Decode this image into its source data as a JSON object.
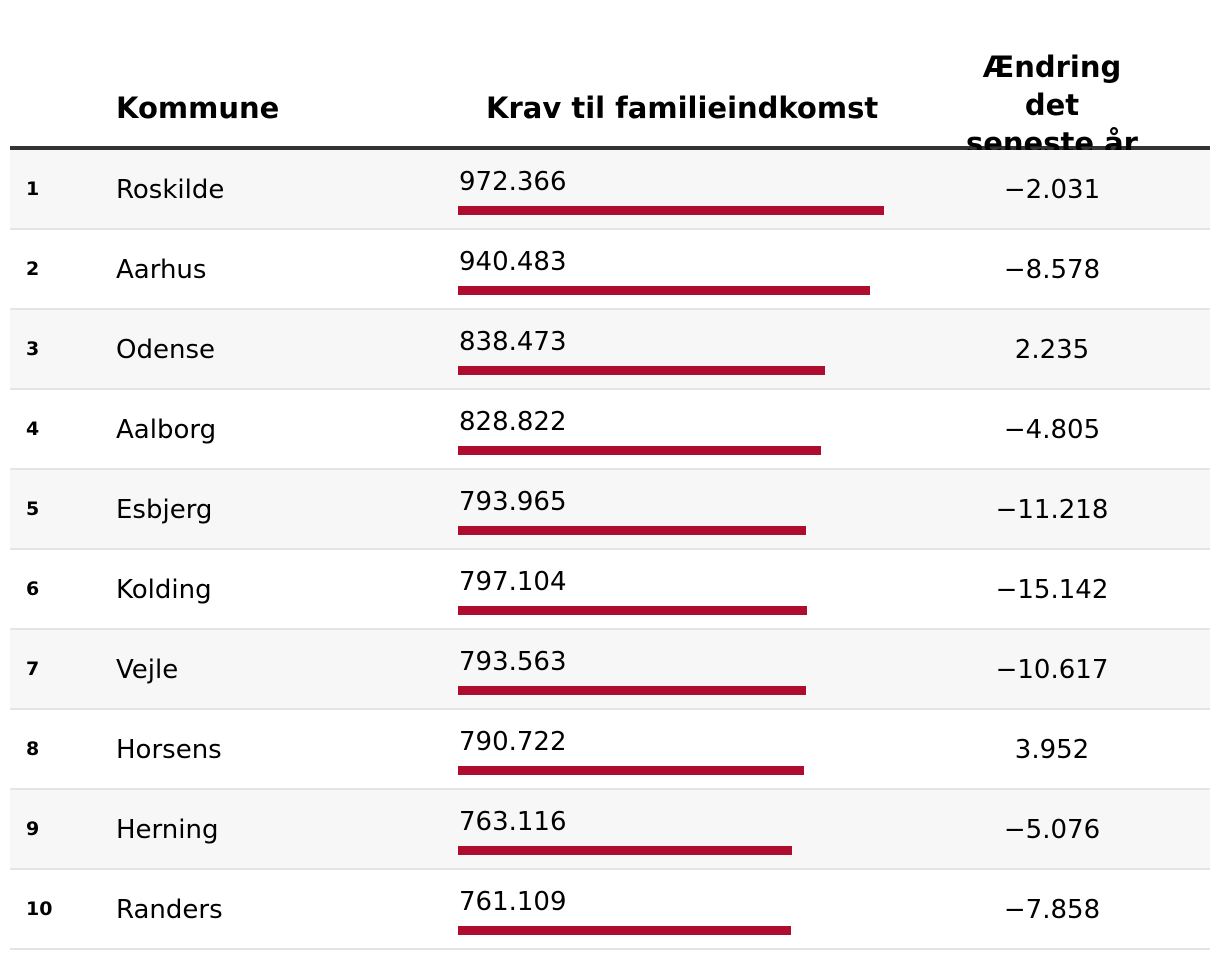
{
  "headers": {
    "kommune": "Kommune",
    "krav": "Krav til familieindkomst",
    "change": "Ændring det seneste år"
  },
  "colors": {
    "bar": "#ae0d2f"
  },
  "chart_data": {
    "type": "table",
    "columns": [
      "",
      "Kommune",
      "Krav til familieindkomst",
      "Ændring det seneste år"
    ],
    "scale_max": 1000000,
    "rows": [
      {
        "rank": "1",
        "kommune": "Roskilde",
        "value": 972366,
        "value_label": "972.366",
        "change": "−2.031"
      },
      {
        "rank": "2",
        "kommune": "Aarhus",
        "value": 940483,
        "value_label": "940.483",
        "change": "−8.578"
      },
      {
        "rank": "3",
        "kommune": "Odense",
        "value": 838473,
        "value_label": "838.473",
        "change": "2.235"
      },
      {
        "rank": "4",
        "kommune": "Aalborg",
        "value": 828822,
        "value_label": "828.822",
        "change": "−4.805"
      },
      {
        "rank": "5",
        "kommune": "Esbjerg",
        "value": 793965,
        "value_label": "793.965",
        "change": "−11.218"
      },
      {
        "rank": "6",
        "kommune": "Kolding",
        "value": 797104,
        "value_label": "797.104",
        "change": "−15.142"
      },
      {
        "rank": "7",
        "kommune": "Vejle",
        "value": 793563,
        "value_label": "793.563",
        "change": "−10.617"
      },
      {
        "rank": "8",
        "kommune": "Horsens",
        "value": 790722,
        "value_label": "790.722",
        "change": "3.952"
      },
      {
        "rank": "9",
        "kommune": "Herning",
        "value": 763116,
        "value_label": "763.116",
        "change": "−5.076"
      },
      {
        "rank": "10",
        "kommune": "Randers",
        "value": 761109,
        "value_label": "761.109",
        "change": "−7.858"
      }
    ]
  }
}
